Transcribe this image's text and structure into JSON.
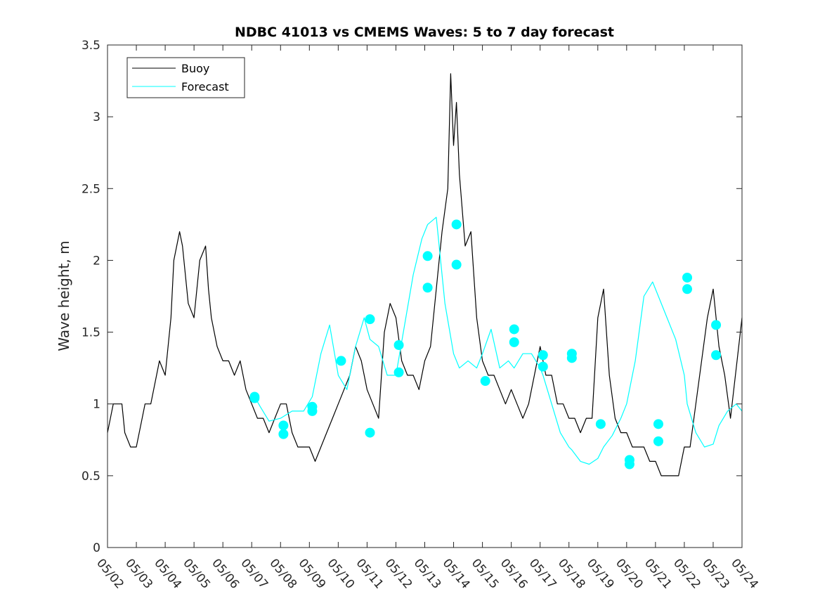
{
  "chart_data": {
    "type": "line",
    "title": "NDBC 41013 vs CMEMS Waves: 5 to 7 day forecast",
    "xlabel": "",
    "ylabel": "Wave height, m",
    "xlim": [
      0,
      22
    ],
    "ylim": [
      0,
      3.5
    ],
    "x_ticks": [
      "05/02",
      "05/03",
      "05/04",
      "05/05",
      "05/06",
      "05/07",
      "05/08",
      "05/09",
      "05/10",
      "05/11",
      "05/12",
      "05/13",
      "05/14",
      "05/15",
      "05/16",
      "05/17",
      "05/18",
      "05/19",
      "05/20",
      "05/21",
      "05/22",
      "05/23",
      "05/24"
    ],
    "y_ticks": [
      0,
      0.5,
      1,
      1.5,
      2,
      2.5,
      3,
      3.5
    ],
    "y_tick_labels": [
      "0",
      "0.5",
      "1",
      "1.5",
      "2",
      "2.5",
      "3",
      "3.5"
    ],
    "grid": false,
    "legend": {
      "position": "top-left",
      "entries": [
        "Buoy",
        "Forecast"
      ]
    },
    "colors": {
      "buoy": "#000000",
      "forecast": "#00FFFF",
      "axes": "#262626"
    },
    "series": [
      {
        "name": "Buoy",
        "x": [
          0,
          0.1,
          0.2,
          0.3,
          0.5,
          0.6,
          0.8,
          1.0,
          1.2,
          1.3,
          1.5,
          1.7,
          1.8,
          2.0,
          2.2,
          2.3,
          2.5,
          2.6,
          2.8,
          3.0,
          3.2,
          3.4,
          3.5,
          3.6,
          3.8,
          4.0,
          4.2,
          4.4,
          4.6,
          4.8,
          5.0,
          5.2,
          5.4,
          5.6,
          5.8,
          6.0,
          6.2,
          6.4,
          6.6,
          6.8,
          7.0,
          7.2,
          7.4,
          7.6,
          7.8,
          8.0,
          8.2,
          8.4,
          8.6,
          8.8,
          9.0,
          9.2,
          9.4,
          9.6,
          9.8,
          10.0,
          10.2,
          10.4,
          10.6,
          10.8,
          11.0,
          11.2,
          11.4,
          11.5,
          11.6,
          11.8,
          11.9,
          12.0,
          12.1,
          12.2,
          12.4,
          12.6,
          12.8,
          13.0,
          13.2,
          13.4,
          13.6,
          13.8,
          14.0,
          14.2,
          14.4,
          14.6,
          14.8,
          15.0,
          15.2,
          15.4,
          15.6,
          15.8,
          16.0,
          16.2,
          16.4,
          16.6,
          16.8,
          17.0,
          17.2,
          17.4,
          17.6,
          17.8,
          18.0,
          18.2,
          18.4,
          18.6,
          18.8,
          19.0,
          19.2,
          19.4,
          19.6,
          19.8,
          20.0,
          20.2,
          20.4,
          20.6,
          20.8,
          21.0,
          21.2,
          21.4,
          21.6,
          22.0
        ],
        "values": [
          0.8,
          0.9,
          1.0,
          1.0,
          1.0,
          0.8,
          0.7,
          0.7,
          0.9,
          1.0,
          1.0,
          1.2,
          1.3,
          1.2,
          1.6,
          2.0,
          2.2,
          2.1,
          1.7,
          1.6,
          2.0,
          2.1,
          1.8,
          1.6,
          1.4,
          1.3,
          1.3,
          1.2,
          1.3,
          1.1,
          1.0,
          0.9,
          0.9,
          0.8,
          0.9,
          1.0,
          1.0,
          0.8,
          0.7,
          0.7,
          0.7,
          0.6,
          0.7,
          0.8,
          0.9,
          1.0,
          1.1,
          1.2,
          1.4,
          1.3,
          1.1,
          1.0,
          0.9,
          1.5,
          1.7,
          1.6,
          1.3,
          1.2,
          1.2,
          1.1,
          1.3,
          1.4,
          1.8,
          2.0,
          2.2,
          2.5,
          3.3,
          2.8,
          3.1,
          2.6,
          2.1,
          2.2,
          1.6,
          1.3,
          1.2,
          1.2,
          1.1,
          1.0,
          1.1,
          1.0,
          0.9,
          1.0,
          1.2,
          1.4,
          1.2,
          1.2,
          1.0,
          1.0,
          0.9,
          0.9,
          0.8,
          0.9,
          0.9,
          1.6,
          1.8,
          1.2,
          0.9,
          0.8,
          0.8,
          0.7,
          0.7,
          0.7,
          0.6,
          0.6,
          0.5,
          0.5,
          0.5,
          0.5,
          0.7,
          0.7,
          1.0,
          1.3,
          1.6,
          1.8,
          1.4,
          1.2,
          0.9,
          1.6
        ]
      },
      {
        "name": "Forecast",
        "x": [
          5.1,
          5.3,
          5.6,
          6.0,
          6.4,
          6.8,
          7.1,
          7.4,
          7.7,
          8.0,
          8.3,
          8.6,
          8.9,
          9.1,
          9.4,
          9.7,
          10.0,
          10.3,
          10.6,
          10.9,
          11.1,
          11.4,
          11.7,
          12.0,
          12.2,
          12.5,
          12.8,
          13.0,
          13.3,
          13.6,
          13.9,
          14.1,
          14.4,
          14.7,
          15.0,
          15.1,
          15.4,
          15.7,
          16.0,
          16.1,
          16.4,
          16.7,
          17.0,
          17.2,
          17.5,
          17.8,
          18.0,
          18.3,
          18.6,
          18.9,
          19.1,
          19.4,
          19.7,
          20.0,
          20.1,
          20.4,
          20.7,
          21.0,
          21.2,
          21.5,
          21.8,
          22.0
        ],
        "values": [
          1.05,
          0.98,
          0.88,
          0.9,
          0.95,
          0.95,
          1.05,
          1.35,
          1.55,
          1.2,
          1.1,
          1.4,
          1.6,
          1.45,
          1.4,
          1.2,
          1.2,
          1.55,
          1.9,
          2.15,
          2.25,
          2.3,
          1.7,
          1.35,
          1.25,
          1.3,
          1.25,
          1.35,
          1.52,
          1.25,
          1.3,
          1.25,
          1.35,
          1.35,
          1.25,
          1.2,
          1.0,
          0.8,
          0.7,
          0.68,
          0.6,
          0.58,
          0.62,
          0.7,
          0.78,
          0.9,
          1.0,
          1.3,
          1.75,
          1.85,
          1.75,
          1.6,
          1.45,
          1.2,
          1.0,
          0.8,
          0.7,
          0.72,
          0.85,
          0.95,
          1.0,
          0.95
        ]
      }
    ],
    "markers": {
      "x": [
        5.1,
        5.1,
        6.1,
        6.1,
        7.1,
        7.1,
        8.1,
        9.1,
        9.1,
        10.1,
        10.1,
        11.1,
        11.1,
        12.1,
        12.1,
        13.1,
        14.1,
        14.1,
        15.1,
        15.1,
        16.1,
        16.1,
        17.1,
        18.1,
        18.1,
        19.1,
        19.1,
        20.1,
        20.1,
        21.1,
        21.1
      ],
      "values": [
        1.05,
        1.04,
        0.85,
        0.79,
        0.98,
        0.95,
        1.3,
        1.59,
        0.8,
        1.41,
        1.22,
        2.03,
        1.81,
        2.25,
        1.97,
        1.16,
        1.52,
        1.43,
        1.34,
        1.26,
        1.35,
        1.32,
        0.86,
        0.61,
        0.58,
        0.86,
        0.74,
        1.88,
        1.8,
        1.55,
        1.34
      ]
    }
  }
}
